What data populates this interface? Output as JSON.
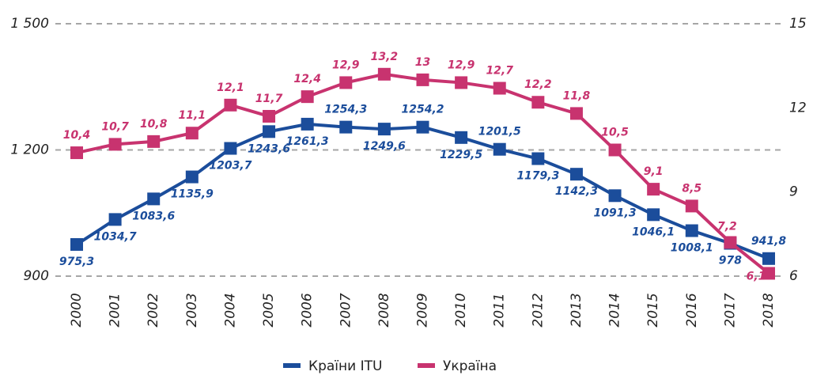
{
  "chart_data": {
    "type": "line",
    "categories": [
      "2000",
      "2001",
      "2002",
      "2003",
      "2004",
      "2005",
      "2006",
      "2007",
      "2008",
      "2009",
      "2010",
      "2011",
      "2012",
      "2013",
      "2014",
      "2015",
      "2016",
      "2017",
      "2018"
    ],
    "series": [
      {
        "name": "Країни ITU",
        "color": "#1b4d9b",
        "values": [
          975.3,
          1034.7,
          1083.6,
          1135.9,
          1203.7,
          1243.6,
          1261.3,
          1254.3,
          1249.6,
          1254.2,
          1229.5,
          1201.5,
          1179.3,
          1142.3,
          1091.3,
          1046.1,
          1008.1,
          978,
          941.8
        ],
        "value_labels": [
          "975,3",
          "1034,7",
          "1083,6",
          "1135,9",
          "1203,7",
          "1243,6",
          "1261,3",
          "1254,3",
          "1249,6",
          "1254,2",
          "1229,5",
          "1201,5",
          "1179,3",
          "1142,3",
          "1091,3",
          "1046,1",
          "1008,1",
          "978",
          "941,8"
        ]
      },
      {
        "name": "Україна",
        "color": "#c8336f",
        "axis": "y2",
        "values": [
          10.4,
          10.7,
          10.8,
          11.1,
          12.1,
          11.7,
          12.4,
          12.9,
          13.2,
          13,
          12.9,
          12.7,
          12.2,
          11.8,
          10.5,
          9.1,
          8.5,
          7.2,
          6.1
        ],
        "value_labels": [
          "10,4",
          "10,7",
          "10,8",
          "11,1",
          "12,1",
          "11,7",
          "12,4",
          "12,9",
          "13,2",
          "13",
          "12,9",
          "12,7",
          "12,2",
          "11,8",
          "10,5",
          "9,1",
          "8,5",
          "7,2",
          "6,1"
        ]
      }
    ],
    "ylim": [
      900,
      1500
    ],
    "yticks": [
      900,
      {
        "value": 1200,
        "label": "1 200"
      },
      {
        "value": 1500,
        "label": "1 500"
      }
    ],
    "y2lim": [
      6,
      15
    ],
    "y2ticks": [
      6,
      9,
      12,
      15
    ],
    "grid": true,
    "legend": "bottom"
  }
}
